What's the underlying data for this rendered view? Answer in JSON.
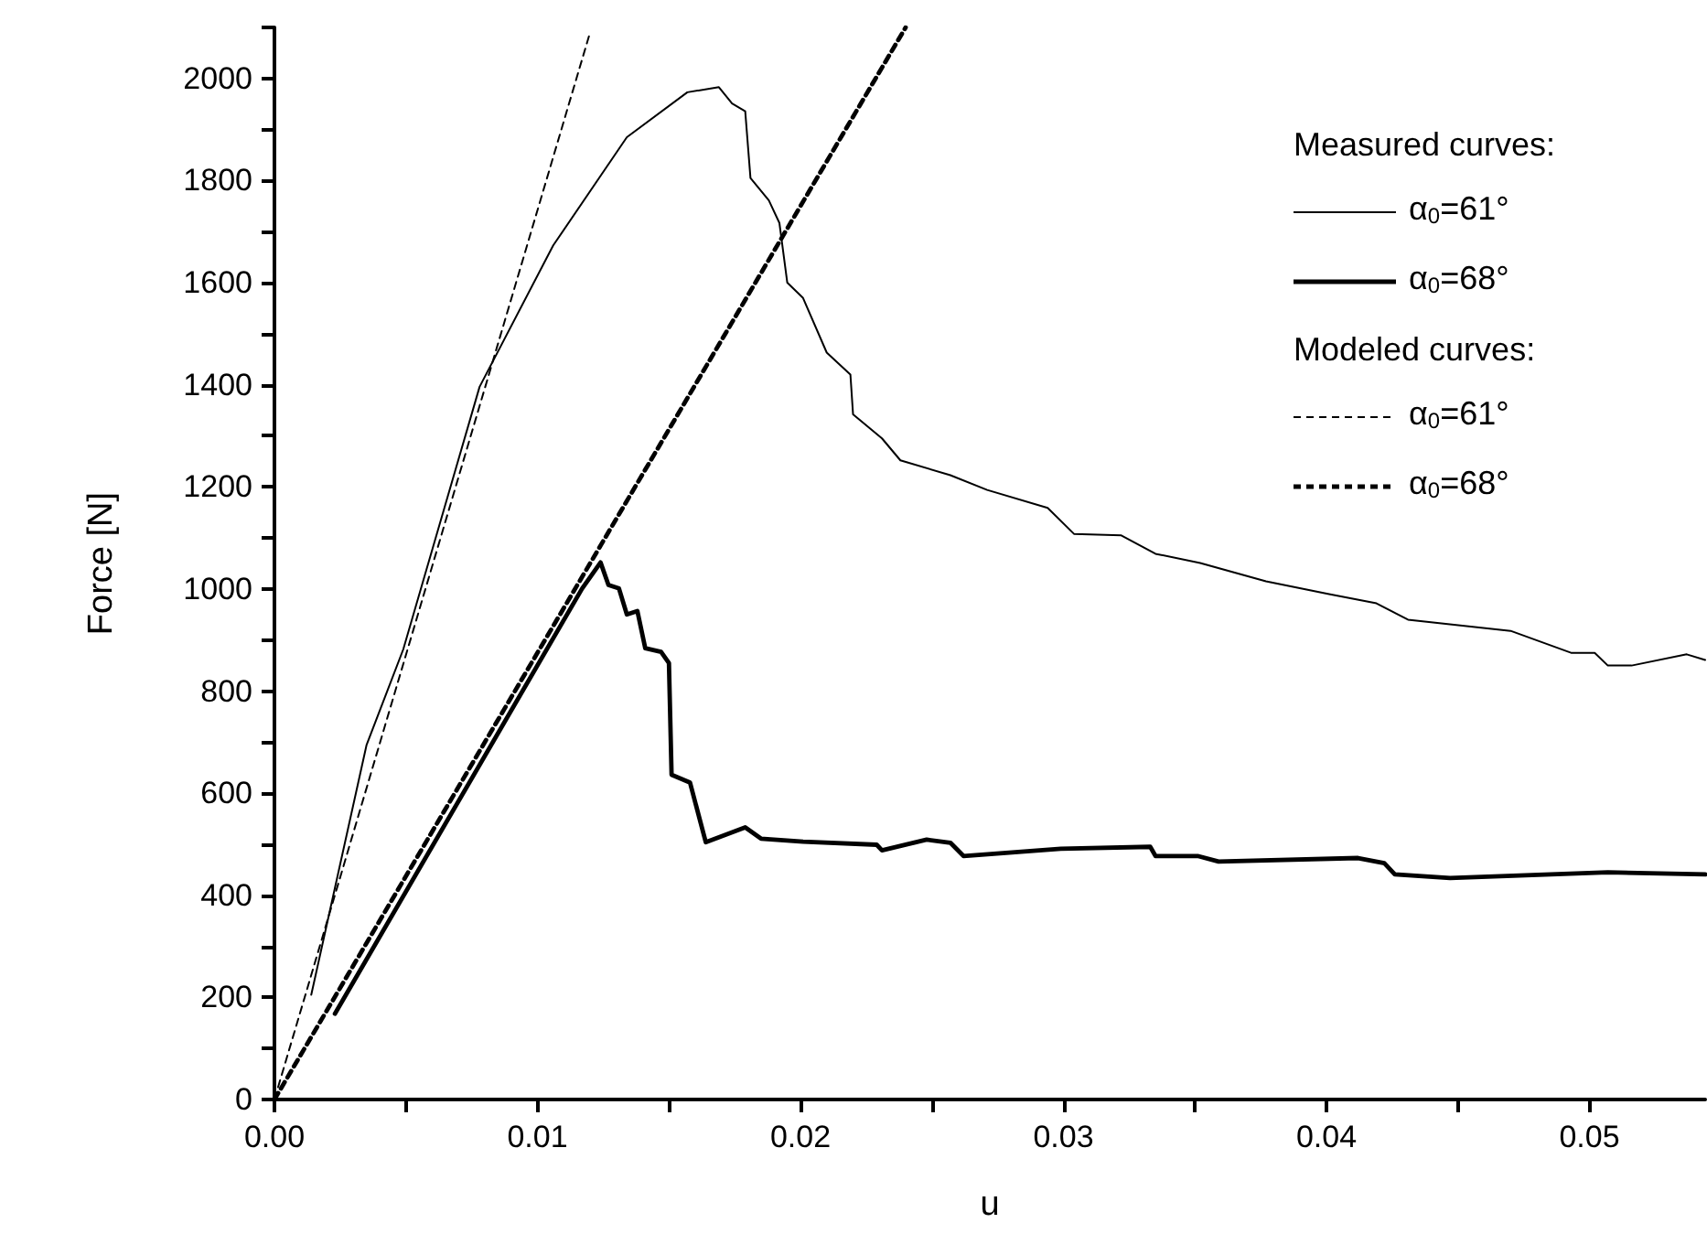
{
  "chart_data": {
    "type": "line",
    "xlabel": "u",
    "ylabel": "Force [N]",
    "annotations": [
      "Measured curves:",
      "Modeled curves:"
    ],
    "xlim": [
      0,
      0.0544
    ],
    "ylim": [
      0,
      2100
    ],
    "xticks": [
      {
        "value": 0,
        "label": "0.00"
      },
      {
        "value": 0.005,
        "label": null
      },
      {
        "value": 0.01,
        "label": "0.01"
      },
      {
        "value": 0.015,
        "label": null
      },
      {
        "value": 0.02,
        "label": "0.02"
      },
      {
        "value": 0.025,
        "label": null
      },
      {
        "value": 0.03,
        "label": "0.03"
      },
      {
        "value": 0.035,
        "label": null
      },
      {
        "value": 0.04,
        "label": "0.04"
      },
      {
        "value": 0.045,
        "label": null
      },
      {
        "value": 0.05,
        "label": "0.05"
      }
    ],
    "yticks": [
      0,
      {
        "value": 100,
        "label": null
      },
      200,
      {
        "value": 300,
        "label": null
      },
      400,
      {
        "value": 500,
        "label": null
      },
      600,
      {
        "value": 700,
        "label": null
      },
      800,
      {
        "value": 900,
        "label": null
      },
      1000,
      {
        "value": 1100,
        "label": null
      },
      1200,
      {
        "value": 1300,
        "label": null
      },
      1400,
      {
        "value": 1500,
        "label": null
      },
      1600,
      {
        "value": 1700,
        "label": null
      },
      1800,
      {
        "value": 1900,
        "label": null
      },
      2000,
      {
        "value": 2100,
        "label": null
      }
    ],
    "grid": false,
    "legend": "top right",
    "series": [
      {
        "name": "α$_{0}$=61°",
        "color": "#000000",
        "line_style": "solid",
        "x": [
          0.0014,
          0.0035,
          0.0049,
          0.0078,
          0.0106,
          0.0134,
          0.0157,
          0.0169,
          0.0174,
          0.0179,
          0.0181,
          0.0188,
          0.0192,
          0.0195,
          0.0201,
          0.021,
          0.0219,
          0.022,
          0.0231,
          0.0238,
          0.0257,
          0.0271,
          0.0294,
          0.0304,
          0.0322,
          0.0335,
          0.0352,
          0.0377,
          0.0401,
          0.0419,
          0.0431,
          0.047,
          0.0493,
          0.0502,
          0.0507,
          0.0516,
          0.0537,
          0.0544
        ],
        "values": [
          205,
          694,
          882,
          1396,
          1673,
          1885,
          1973,
          1983,
          1951,
          1936,
          1805,
          1761,
          1717,
          1600,
          1570,
          1463,
          1420,
          1342,
          1295,
          1252,
          1223,
          1194,
          1159,
          1108,
          1105,
          1069,
          1051,
          1015,
          990,
          972,
          940,
          918,
          875,
          875,
          850,
          850,
          872,
          861
        ]
      },
      {
        "name": "α$_{0}$=68°",
        "color": "#000000",
        "line_style": "solid",
        "x": [
          0.0023,
          0.0117,
          0.0124,
          0.0127,
          0.0131,
          0.0134,
          0.0138,
          0.0141,
          0.0147,
          0.015,
          0.0151,
          0.0158,
          0.0164,
          0.0179,
          0.0185,
          0.0201,
          0.0229,
          0.0231,
          0.0248,
          0.0257,
          0.0262,
          0.0299,
          0.0333,
          0.0335,
          0.0351,
          0.0359,
          0.0412,
          0.0422,
          0.0426,
          0.0447,
          0.0507,
          0.0544
        ],
        "values": [
          168,
          1001,
          1052,
          1008,
          1001,
          950,
          957,
          884,
          877,
          855,
          636,
          621,
          504,
          533,
          511,
          505,
          499,
          488,
          509,
          503,
          477,
          491,
          495,
          477,
          477,
          466,
          473,
          463,
          441,
          434,
          445,
          441
        ]
      },
      {
        "name": "α$_{0}$=61°",
        "color": "#000000",
        "line_style": "dashed",
        "x": [
          0,
          0.012
        ],
        "values": [
          0,
          2090
        ]
      },
      {
        "name": "α$_{0}$=68°",
        "color": "#000000",
        "line_style": "dashed",
        "x": [
          0,
          0.024
        ],
        "values": [
          0,
          2100
        ]
      }
    ]
  }
}
